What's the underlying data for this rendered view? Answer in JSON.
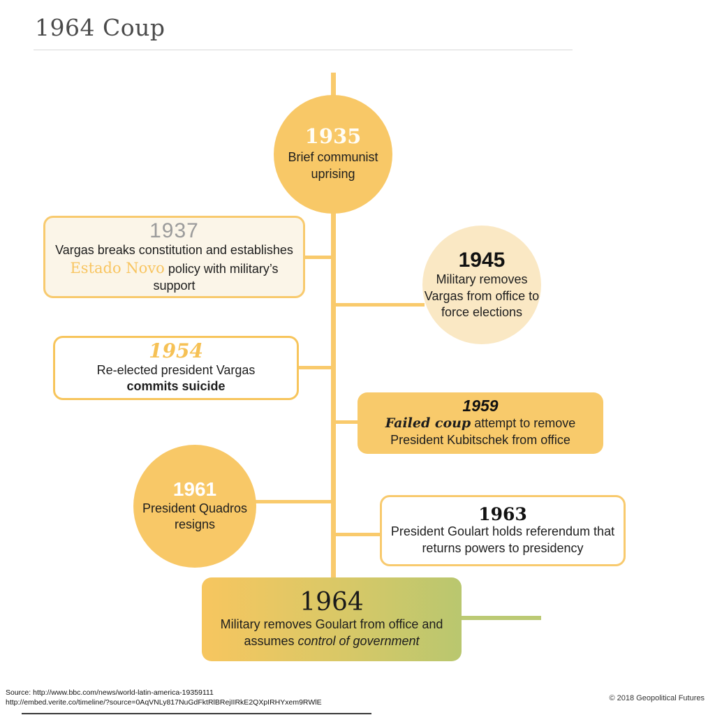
{
  "header": {
    "title": "1964 Coup"
  },
  "timeline": {
    "events": {
      "e1935": {
        "year": "1935",
        "text": "Brief communist uprising"
      },
      "e1937": {
        "year": "1937",
        "t1": "Vargas breaks constitution and establishes ",
        "hl": "Estado Novo",
        "t2": " policy with military’s support"
      },
      "e1945": {
        "year": "1945",
        "text": "Military removes Vargas from office to force elections"
      },
      "e1954": {
        "year": "1954",
        "t1": "Re-elected president Vargas",
        "bold": "commits suicide"
      },
      "e1959": {
        "year": "1959",
        "it": "Failed coup",
        "t2": " attempt to remove President Kubitschek from office"
      },
      "e1961": {
        "year": "1961",
        "text": "President Quadros resigns"
      },
      "e1963": {
        "year": "1963",
        "text": "President Goulart holds referendum that returns powers to presidency"
      },
      "e1964": {
        "year": "1964",
        "t1": "Military removes Goulart from office and assumes ",
        "it": "control of government"
      }
    }
  },
  "footer": {
    "source_line1": "Source: http://www.bbc.com/news/world-latin-america-19359111",
    "source_line2": "http://embed.verite.co/timeline/?source=0AqVNLy817NuGdFktRlBRejIIRkE2QXpIRHYxem9RWlE",
    "copyright": "© 2018 Geopolitical Futures"
  },
  "colors": {
    "accent_yellow": "#f8c867",
    "spine_yellow": "#f9ca6c",
    "light_circle": "#fae8c4",
    "cream_box": "#fbf5e8",
    "filled_box": "#f8ca6b",
    "gradient_start": "#f7c65f",
    "gradient_end": "#b9c76f",
    "green_connector": "#bcca74",
    "year_gray": "#9b9b9b",
    "year_yellow": "#f6c155"
  }
}
